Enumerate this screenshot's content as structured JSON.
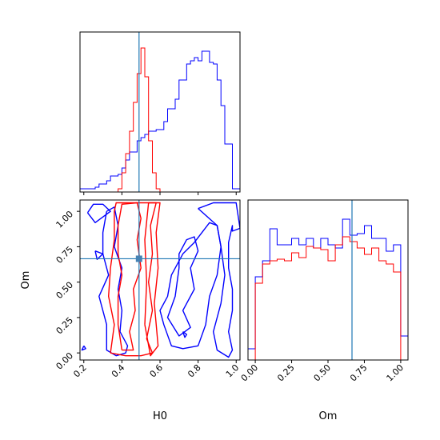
{
  "chart_data": [
    {
      "panel": "hist-H0",
      "type": "histogram",
      "x_range": [
        0.18,
        1.02
      ],
      "truth": 0.49,
      "series": [
        {
          "color": "#0000ff",
          "edges": [
            0.18,
            0.2,
            0.22,
            0.24,
            0.26,
            0.28,
            0.3,
            0.32,
            0.34,
            0.36,
            0.38,
            0.4,
            0.42,
            0.44,
            0.46,
            0.48,
            0.5,
            0.52,
            0.54,
            0.56,
            0.58,
            0.6,
            0.62,
            0.64,
            0.66,
            0.68,
            0.7,
            0.72,
            0.74,
            0.76,
            0.78,
            0.8,
            0.82,
            0.84,
            0.86,
            0.88,
            0.9,
            0.92,
            0.94,
            0.96,
            0.98,
            1.0,
            1.02
          ],
          "heights": [
            0.02,
            0.02,
            0.02,
            0.02,
            0.03,
            0.05,
            0.05,
            0.07,
            0.1,
            0.1,
            0.11,
            0.15,
            0.2,
            0.25,
            0.25,
            0.32,
            0.34,
            0.36,
            0.38,
            0.38,
            0.39,
            0.39,
            0.44,
            0.52,
            0.52,
            0.58,
            0.7,
            0.7,
            0.8,
            0.82,
            0.84,
            0.82,
            0.88,
            0.88,
            0.81,
            0.8,
            0.7,
            0.54,
            0.3,
            0.3,
            0.02,
            0.02
          ]
        },
        {
          "color": "#ff0000",
          "edges": [
            0.18,
            0.2,
            0.22,
            0.24,
            0.26,
            0.28,
            0.3,
            0.32,
            0.34,
            0.36,
            0.38,
            0.4,
            0.42,
            0.44,
            0.46,
            0.48,
            0.5,
            0.52,
            0.54,
            0.56,
            0.58,
            0.6,
            0.62,
            0.64,
            0.66,
            0.68,
            0.7,
            0.72,
            0.74,
            0.76,
            0.78,
            0.8,
            0.82,
            0.84,
            0.86,
            0.88,
            0.9,
            0.92,
            0.94,
            0.96,
            0.98,
            1.0,
            1.02
          ],
          "heights": [
            0,
            0,
            0,
            0,
            0,
            0,
            0,
            0,
            0,
            0,
            0.02,
            0.12,
            0.24,
            0.38,
            0.56,
            0.74,
            0.9,
            0.72,
            0.32,
            0.12,
            0.02,
            0,
            0,
            0,
            0,
            0,
            0,
            0,
            0,
            0,
            0,
            0,
            0,
            0,
            0,
            0,
            0,
            0,
            0,
            0,
            0,
            0
          ]
        }
      ]
    },
    {
      "panel": "contour-H0-Om",
      "type": "contour",
      "x_range": [
        0.18,
        1.02
      ],
      "y_range": [
        -0.05,
        1.08
      ],
      "truth": [
        0.49,
        0.665
      ],
      "xlabel": "H0",
      "ylabel": "Om",
      "x_ticks": [
        "0.2",
        "0.4",
        "0.6",
        "0.8",
        "1.0"
      ],
      "x_tick_values": [
        0.2,
        0.4,
        0.6,
        0.8,
        1.0
      ],
      "y_ticks": [
        "0.00",
        "0.25",
        "0.50",
        "0.75",
        "1.00"
      ],
      "y_tick_values": [
        0.0,
        0.25,
        0.5,
        0.75,
        1.0
      ],
      "series": [
        {
          "color": "#0000ff",
          "contours": [
            [
              [
                0.32,
                1.0
              ],
              [
                0.36,
                1.03
              ],
              [
                0.38,
                0.9
              ],
              [
                0.36,
                0.75
              ],
              [
                0.4,
                0.6
              ],
              [
                0.38,
                0.45
              ],
              [
                0.4,
                0.3
              ],
              [
                0.39,
                0.15
              ],
              [
                0.43,
                0.05
              ],
              [
                0.42,
                0.0
              ],
              [
                0.37,
                -0.02
              ],
              [
                0.32,
                0.02
              ],
              [
                0.32,
                0.2
              ],
              [
                0.28,
                0.4
              ],
              [
                0.33,
                0.55
              ],
              [
                0.3,
                0.7
              ],
              [
                0.3,
                0.85
              ],
              [
                0.32,
                1.0
              ]
            ],
            [
              [
                0.22,
                0.99
              ],
              [
                0.25,
                1.05
              ],
              [
                0.3,
                1.05
              ],
              [
                0.34,
                1.0
              ],
              [
                0.3,
                0.96
              ],
              [
                0.26,
                0.92
              ],
              [
                0.22,
                0.99
              ]
            ],
            [
              [
                0.2,
                0.05
              ],
              [
                0.21,
                0.03
              ],
              [
                0.19,
                0.02
              ],
              [
                0.2,
                0.05
              ]
            ],
            [
              [
                0.26,
                0.72
              ],
              [
                0.3,
                0.7
              ],
              [
                0.27,
                0.66
              ],
              [
                0.26,
                0.72
              ]
            ],
            [
              [
                0.7,
                0.6
              ],
              [
                0.68,
                0.4
              ],
              [
                0.64,
                0.25
              ],
              [
                0.7,
                0.12
              ],
              [
                0.76,
                0.18
              ],
              [
                0.72,
                0.3
              ],
              [
                0.78,
                0.45
              ],
              [
                0.76,
                0.6
              ],
              [
                0.8,
                0.72
              ],
              [
                0.78,
                0.82
              ],
              [
                0.74,
                0.8
              ],
              [
                0.7,
                0.7
              ],
              [
                0.7,
                0.6
              ]
            ],
            [
              [
                0.62,
                0.2
              ],
              [
                0.66,
                0.05
              ],
              [
                0.72,
                0.03
              ],
              [
                0.8,
                0.05
              ],
              [
                0.84,
                0.2
              ],
              [
                0.86,
                0.4
              ],
              [
                0.9,
                0.55
              ],
              [
                0.92,
                0.75
              ],
              [
                0.9,
                0.9
              ],
              [
                0.86,
                0.92
              ],
              [
                0.82,
                0.85
              ],
              [
                0.78,
                0.78
              ],
              [
                0.72,
                0.7
              ],
              [
                0.66,
                0.55
              ],
              [
                0.64,
                0.4
              ],
              [
                0.6,
                0.3
              ],
              [
                0.62,
                0.2
              ]
            ],
            [
              [
                0.8,
                1.02
              ],
              [
                0.88,
                1.06
              ],
              [
                1.0,
                1.06
              ],
              [
                1.02,
                0.88
              ],
              [
                0.98,
                0.86
              ],
              [
                0.98,
                0.9
              ],
              [
                0.96,
                0.78
              ],
              [
                0.96,
                0.6
              ],
              [
                0.98,
                0.45
              ],
              [
                0.98,
                0.3
              ],
              [
                0.96,
                0.15
              ],
              [
                0.98,
                0.02
              ],
              [
                0.96,
                -0.03
              ],
              [
                0.9,
                0.02
              ],
              [
                0.88,
                0.15
              ],
              [
                0.92,
                0.35
              ],
              [
                0.94,
                0.55
              ],
              [
                0.92,
                0.75
              ],
              [
                0.9,
                0.9
              ],
              [
                0.8,
                1.02
              ]
            ],
            [
              [
                0.72,
                0.15
              ],
              [
                0.74,
                0.13
              ],
              [
                0.73,
                0.11
              ],
              [
                0.72,
                0.15
              ]
            ]
          ]
        },
        {
          "color": "#ff0000",
          "contours": [
            [
              [
                0.4,
                0.02
              ],
              [
                0.38,
                0.2
              ],
              [
                0.38,
                0.4
              ],
              [
                0.4,
                0.55
              ],
              [
                0.38,
                0.7
              ],
              [
                0.38,
                0.9
              ],
              [
                0.4,
                1.05
              ],
              [
                0.48,
                1.06
              ],
              [
                0.5,
                0.95
              ],
              [
                0.48,
                0.8
              ],
              [
                0.5,
                0.6
              ],
              [
                0.46,
                0.45
              ],
              [
                0.47,
                0.3
              ],
              [
                0.44,
                0.15
              ],
              [
                0.46,
                0.02
              ],
              [
                0.4,
                0.02
              ]
            ],
            [
              [
                0.34,
                0.0
              ],
              [
                0.36,
                0.2
              ],
              [
                0.33,
                0.4
              ],
              [
                0.34,
                0.6
              ],
              [
                0.36,
                0.8
              ],
              [
                0.36,
                1.0
              ],
              [
                0.37,
                1.06
              ],
              [
                0.58,
                1.06
              ],
              [
                0.55,
                0.9
              ],
              [
                0.56,
                0.7
              ],
              [
                0.54,
                0.5
              ],
              [
                0.56,
                0.3
              ],
              [
                0.53,
                0.1
              ],
              [
                0.56,
                0.0
              ],
              [
                0.5,
                -0.02
              ],
              [
                0.42,
                -0.02
              ],
              [
                0.34,
                0.0
              ]
            ],
            [
              [
                0.52,
                0.2
              ],
              [
                0.53,
                0.5
              ],
              [
                0.52,
                0.8
              ],
              [
                0.54,
                1.06
              ],
              [
                0.6,
                1.06
              ],
              [
                0.58,
                0.85
              ],
              [
                0.59,
                0.6
              ],
              [
                0.57,
                0.35
              ],
              [
                0.59,
                0.05
              ],
              [
                0.55,
                -0.02
              ],
              [
                0.52,
                0.2
              ]
            ]
          ]
        }
      ]
    },
    {
      "panel": "hist-Om",
      "type": "histogram",
      "x_range": [
        -0.05,
        1.05
      ],
      "truth": 0.665,
      "xlabel": "Om",
      "x_ticks": [
        "0.00",
        "0.25",
        "0.50",
        "0.75",
        "1.00"
      ],
      "x_tick_values": [
        0.0,
        0.25,
        0.5,
        0.75,
        1.0
      ],
      "series": [
        {
          "color": "#0000ff",
          "edges": [
            -0.05,
            0.0,
            0.05,
            0.1,
            0.15,
            0.2,
            0.25,
            0.3,
            0.35,
            0.4,
            0.45,
            0.5,
            0.55,
            0.6,
            0.65,
            0.7,
            0.75,
            0.8,
            0.85,
            0.9,
            0.95,
            1.0,
            1.05
          ],
          "heights": [
            0.07,
            0.52,
            0.62,
            0.82,
            0.72,
            0.72,
            0.76,
            0.72,
            0.76,
            0.7,
            0.76,
            0.72,
            0.7,
            0.88,
            0.78,
            0.79,
            0.84,
            0.76,
            0.76,
            0.68,
            0.72,
            0.15
          ]
        },
        {
          "color": "#ff0000",
          "edges": [
            -0.05,
            0.0,
            0.05,
            0.1,
            0.15,
            0.2,
            0.25,
            0.3,
            0.35,
            0.4,
            0.45,
            0.5,
            0.55,
            0.6,
            0.65,
            0.7,
            0.75,
            0.8,
            0.85,
            0.9,
            0.95,
            1.0,
            1.05
          ],
          "heights": [
            0,
            0.48,
            0.6,
            0.62,
            0.63,
            0.62,
            0.67,
            0.64,
            0.71,
            0.7,
            0.69,
            0.62,
            0.72,
            0.77,
            0.74,
            0.7,
            0.66,
            0.7,
            0.62,
            0.6,
            0.55,
            0
          ]
        }
      ]
    }
  ]
}
